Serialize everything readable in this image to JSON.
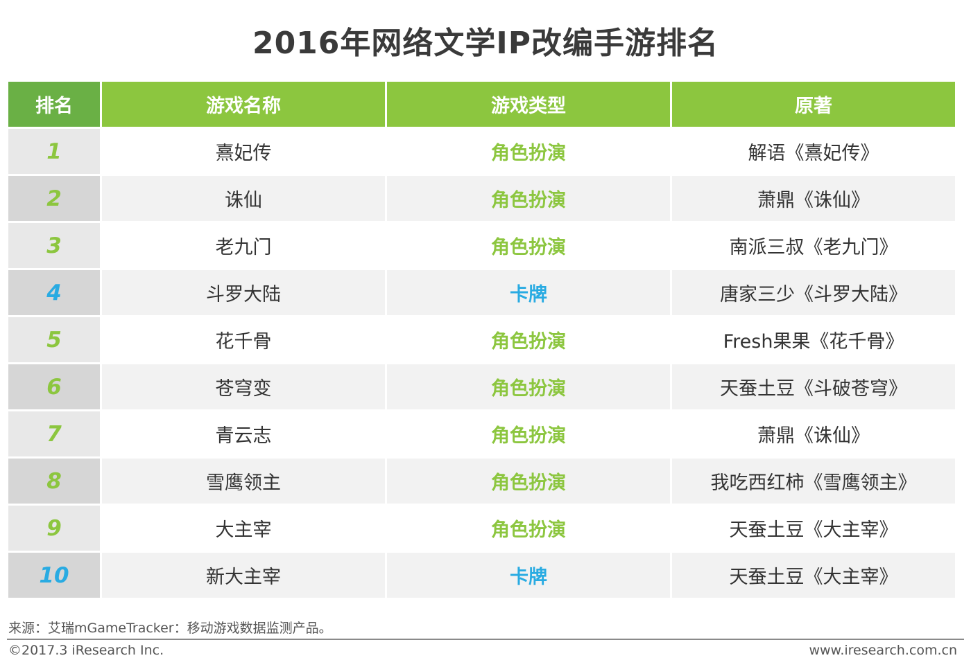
{
  "title": "2016年网络文学IP改编手游排名",
  "chart_data": {
    "type": "table",
    "columns": [
      "排名",
      "游戏名称",
      "游戏类型",
      "原著"
    ],
    "rows": [
      {
        "rank": "1",
        "name": "熹妃传",
        "type": "角色扮演",
        "original": "解语《熹妃传》"
      },
      {
        "rank": "2",
        "name": "诛仙",
        "type": "角色扮演",
        "original": "萧鼎《诛仙》"
      },
      {
        "rank": "3",
        "name": "老九门",
        "type": "角色扮演",
        "original": "南派三叔《老九门》"
      },
      {
        "rank": "4",
        "name": "斗罗大陆",
        "type": "卡牌",
        "original": "唐家三少《斗罗大陆》"
      },
      {
        "rank": "5",
        "name": "花千骨",
        "type": "角色扮演",
        "original": "Fresh果果《花千骨》"
      },
      {
        "rank": "6",
        "name": "苍穹变",
        "type": "角色扮演",
        "original": "天蚕土豆《斗破苍穹》"
      },
      {
        "rank": "7",
        "name": "青云志",
        "type": "角色扮演",
        "original": "萧鼎《诛仙》"
      },
      {
        "rank": "8",
        "name": "雪鹰领主",
        "type": "角色扮演",
        "original": "我吃西红柿《雪鹰领主》"
      },
      {
        "rank": "9",
        "name": "大主宰",
        "type": "角色扮演",
        "original": "天蚕土豆《大主宰》"
      },
      {
        "rank": "10",
        "name": "新大主宰",
        "type": "卡牌",
        "original": "天蚕土豆《大主宰》"
      }
    ],
    "type_colors": {
      "角色扮演": "#8cc63f",
      "卡牌": "#29abe2"
    },
    "header_colors": {
      "rank": "#6ab045",
      "default": "#8cc63f"
    }
  },
  "footer": {
    "source": "来源：艾瑞mGameTracker：移动游戏数据监测产品。",
    "copyright": "©2017.3 iResearch Inc.",
    "website": "www.iresearch.com.cn"
  }
}
